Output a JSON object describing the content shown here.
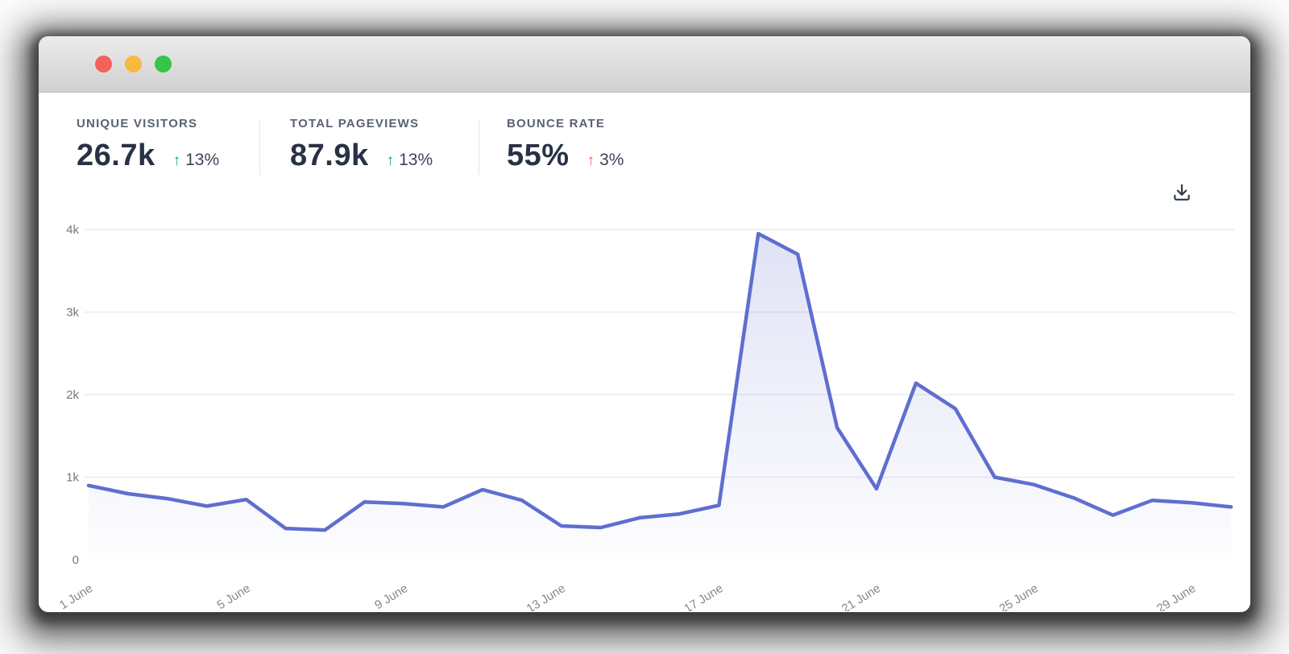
{
  "window": {
    "controls": [
      {
        "name": "close",
        "color": "#f4605a"
      },
      {
        "name": "minimize",
        "color": "#f7b93e"
      },
      {
        "name": "zoom",
        "color": "#35c548"
      }
    ]
  },
  "stats": [
    {
      "label": "UNIQUE VISITORS",
      "value": "26.7k",
      "arrow": "↑",
      "delta": "13%",
      "trend": "up",
      "trend_color": "#23a270"
    },
    {
      "label": "TOTAL PAGEVIEWS",
      "value": "87.9k",
      "arrow": "↑",
      "delta": "13%",
      "trend": "up",
      "trend_color": "#23a270"
    },
    {
      "label": "BOUNCE RATE",
      "value": "55%",
      "arrow": "↑",
      "delta": "3%",
      "trend": "up",
      "trend_color": "#f2635c"
    }
  ],
  "toolbar": {
    "download_icon": "download-icon"
  },
  "chart_data": {
    "type": "area",
    "title": "",
    "xlabel": "",
    "ylabel": "",
    "days": [
      1,
      2,
      3,
      4,
      5,
      6,
      7,
      8,
      9,
      10,
      11,
      12,
      13,
      14,
      15,
      16,
      17,
      18,
      19,
      20,
      21,
      22,
      23,
      24,
      25,
      26,
      27,
      28,
      29,
      30
    ],
    "values": [
      900,
      800,
      740,
      650,
      730,
      380,
      360,
      700,
      680,
      640,
      850,
      720,
      410,
      390,
      510,
      555,
      660,
      3950,
      3700,
      1600,
      860,
      2140,
      1830,
      1000,
      910,
      750,
      540,
      720,
      690,
      640
    ],
    "xticks": [
      {
        "day": 1,
        "label": "1 June"
      },
      {
        "day": 5,
        "label": "5 June"
      },
      {
        "day": 9,
        "label": "9 June"
      },
      {
        "day": 13,
        "label": "13 June"
      },
      {
        "day": 17,
        "label": "17 June"
      },
      {
        "day": 21,
        "label": "21 June"
      },
      {
        "day": 25,
        "label": "25 June"
      },
      {
        "day": 29,
        "label": "29 June"
      }
    ],
    "yticks": [
      {
        "value": 0,
        "label": "0"
      },
      {
        "value": 1000,
        "label": "1k"
      },
      {
        "value": 2000,
        "label": "2k"
      },
      {
        "value": 3000,
        "label": "3k"
      },
      {
        "value": 4000,
        "label": "4k"
      }
    ],
    "ylim": [
      0,
      4300
    ],
    "grid": "horizontal",
    "legend": "none",
    "line_color": "#5f6ed0",
    "fill_color_top": "rgba(100,113,209,0.20)",
    "fill_color_bottom": "rgba(100,113,209,0.01)",
    "grid_color": "#eaeaee",
    "ytick_color": "#74777d",
    "xtick_color": "#85888e"
  }
}
